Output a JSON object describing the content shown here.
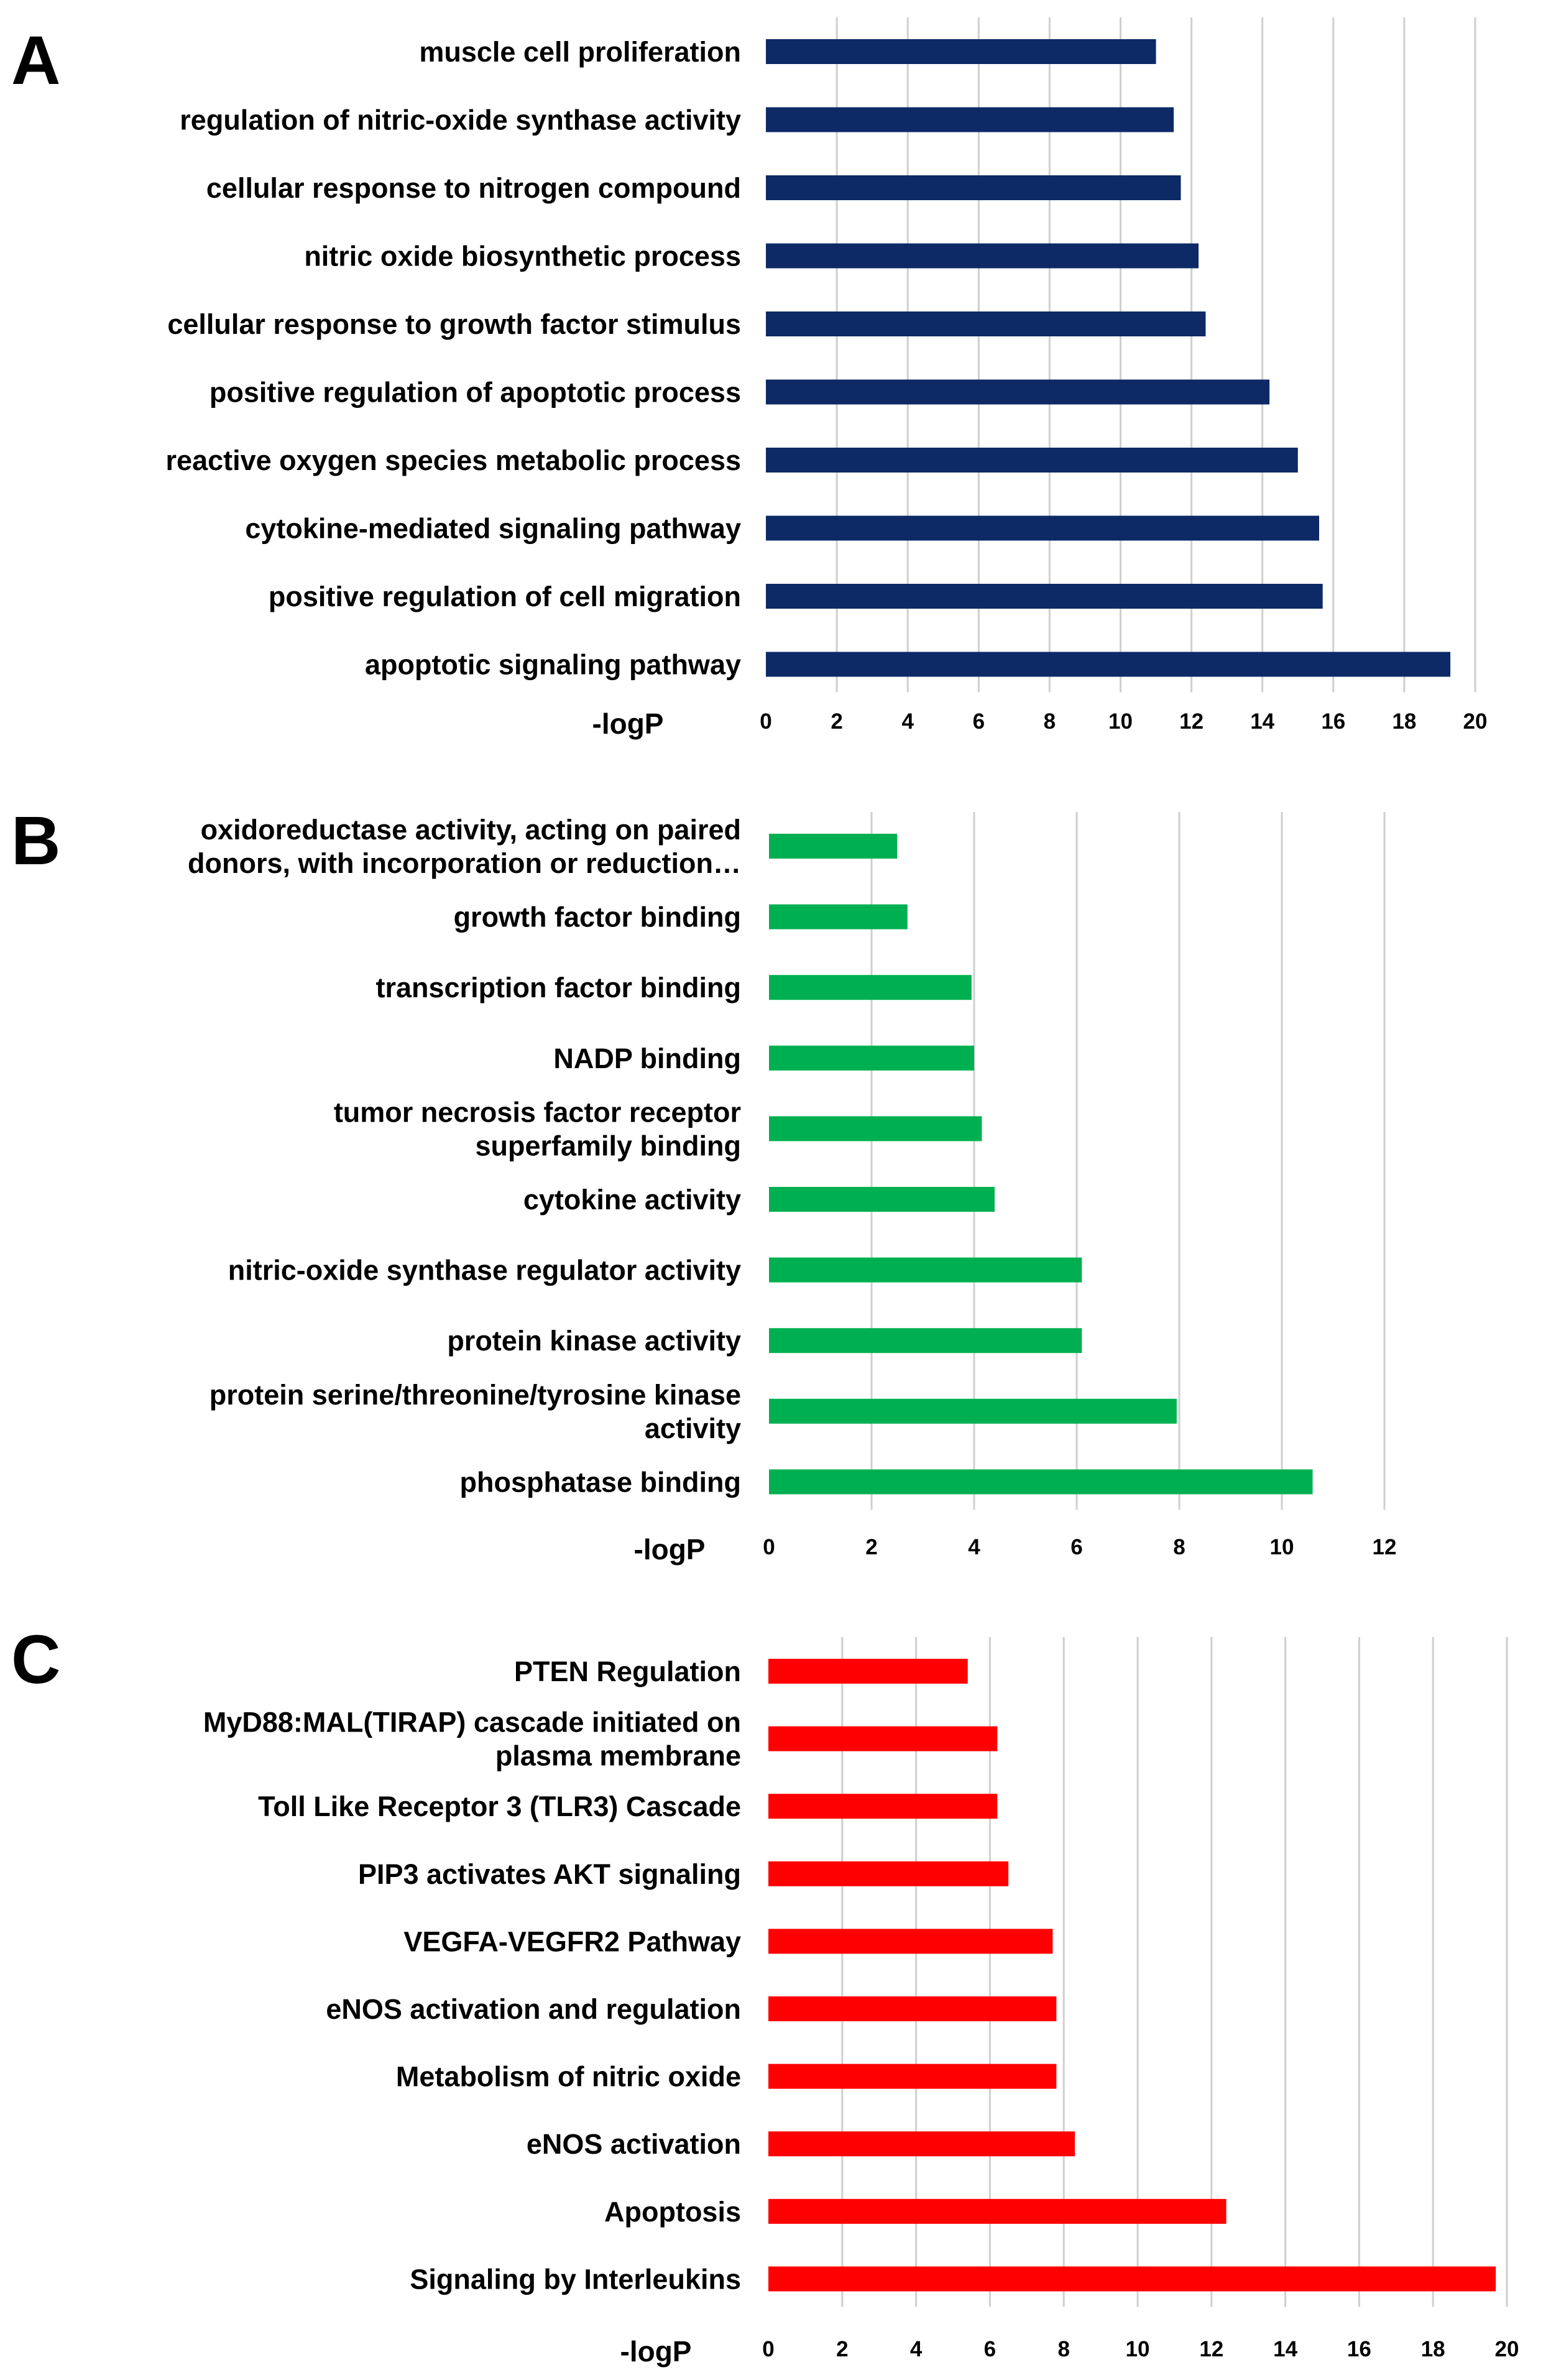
{
  "chart_data": [
    {
      "type": "bar",
      "orientation": "horizontal",
      "panel": "A",
      "color": "#0d2a66",
      "categories": [
        "muscle cell proliferation",
        "regulation of nitric-oxide synthase activity",
        "cellular response to nitrogen compound",
        "nitric oxide biosynthetic process",
        "cellular response to growth factor stimulus",
        "positive regulation of apoptotic process",
        "reactive oxygen species metabolic process",
        "cytokine-mediated signaling pathway",
        "positive regulation of cell migration",
        "apoptotic signaling pathway"
      ],
      "values": [
        11.0,
        11.5,
        11.7,
        12.2,
        12.4,
        14.2,
        15.0,
        15.6,
        15.7,
        19.3
      ],
      "xlabel": "-logP",
      "xlim": [
        0,
        20
      ],
      "xticks": [
        0,
        2,
        4,
        6,
        8,
        10,
        12,
        14,
        16,
        18,
        20
      ],
      "grid": true
    },
    {
      "type": "bar",
      "orientation": "horizontal",
      "panel": "B",
      "color": "#00b050",
      "categories": [
        [
          "oxidoreductase activity, acting on paired",
          "donors, with incorporation or reduction…"
        ],
        [
          "growth factor binding"
        ],
        [
          "transcription factor binding"
        ],
        [
          "NADP binding"
        ],
        [
          "tumor necrosis factor receptor",
          "superfamily binding"
        ],
        [
          "cytokine activity"
        ],
        [
          "nitric-oxide synthase regulator activity"
        ],
        [
          "protein kinase activity"
        ],
        [
          "protein serine/threonine/tyrosine kinase",
          "activity"
        ],
        [
          "phosphatase binding"
        ]
      ],
      "values": [
        2.5,
        2.7,
        3.95,
        4.0,
        4.15,
        4.4,
        6.1,
        6.1,
        7.95,
        10.6
      ],
      "xlabel": "-logP",
      "xlim": [
        0,
        12
      ],
      "xticks": [
        0,
        2,
        4,
        6,
        8,
        10,
        12
      ],
      "grid": true
    },
    {
      "type": "bar",
      "orientation": "horizontal",
      "panel": "C",
      "color": "#ff0000",
      "categories": [
        [
          "PTEN Regulation"
        ],
        [
          "MyD88:MAL(TIRAP) cascade initiated on",
          "plasma membrane"
        ],
        [
          "Toll Like Receptor 3 (TLR3) Cascade"
        ],
        [
          "PIP3 activates AKT signaling"
        ],
        [
          "VEGFA-VEGFR2 Pathway"
        ],
        [
          "eNOS activation and regulation"
        ],
        [
          "Metabolism of nitric oxide"
        ],
        [
          "eNOS activation"
        ],
        [
          "Apoptosis"
        ],
        [
          "Signaling by Interleukins"
        ]
      ],
      "values": [
        5.4,
        6.2,
        6.2,
        6.5,
        7.7,
        7.8,
        7.8,
        8.3,
        12.4,
        19.7
      ],
      "xlabel": "-logP",
      "xlim": [
        0,
        20
      ],
      "xticks": [
        0,
        2,
        4,
        6,
        8,
        10,
        12,
        14,
        16,
        18,
        20
      ],
      "grid": true
    }
  ]
}
